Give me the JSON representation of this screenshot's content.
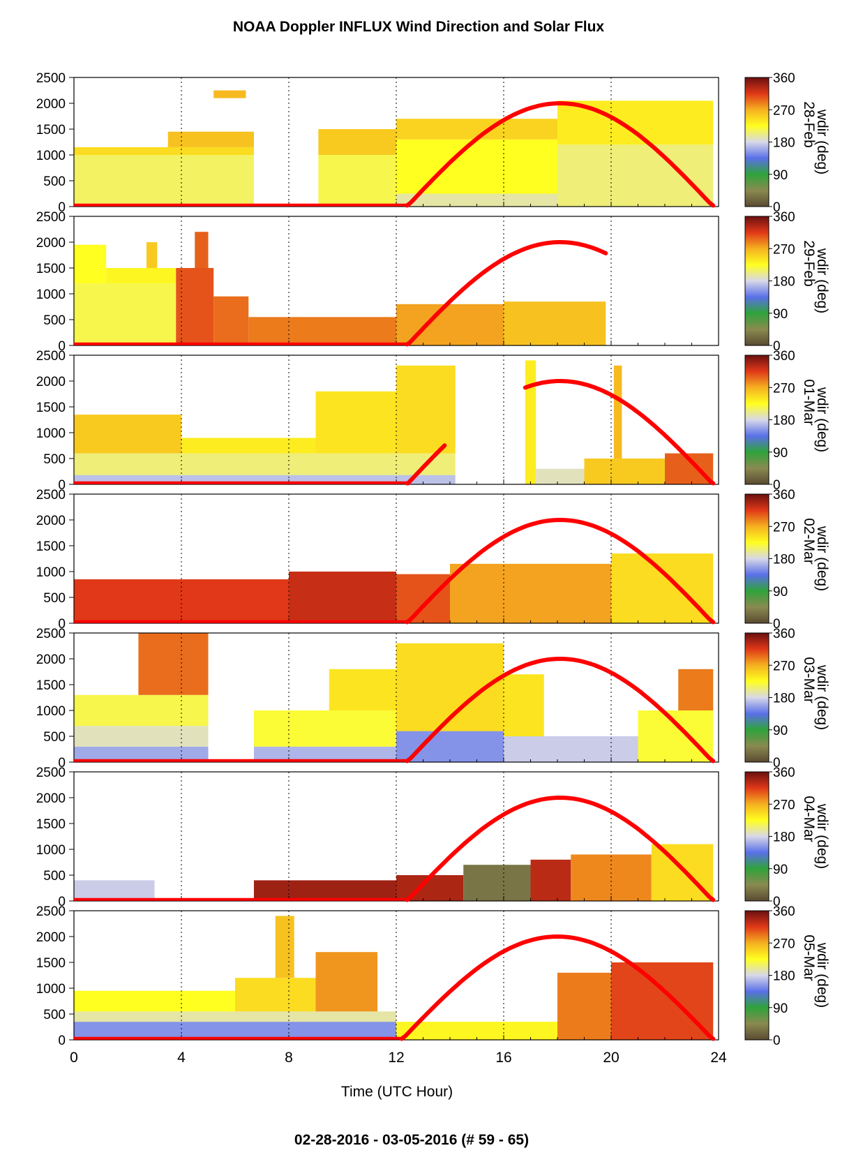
{
  "title": "NOAA Doppler INFLUX Wind Direction and Solar Flux",
  "footer": "02-28-2016 - 03-05-2016   (# 59 - 65)",
  "xlabel": "Time (UTC Hour)",
  "colorbar_label": "wdir (deg)",
  "colors": {
    "solar_curve": "#ff0000",
    "background": "#ffffff"
  },
  "chart_data": {
    "type": "heatmap",
    "title": "NOAA Doppler INFLUX Wind Direction and Solar Flux",
    "xlabel": "Time (UTC Hour)",
    "xlim": [
      0,
      24
    ],
    "xticks": [
      "0",
      "4",
      "8",
      "12",
      "16",
      "20",
      "24"
    ],
    "ylim": [
      0,
      2500
    ],
    "yticks": [
      "0",
      "500",
      "1000",
      "1500",
      "2000",
      "2500"
    ],
    "grid": "dotted vertical lines every 4 hours",
    "colorbar": {
      "label": "wdir (deg)",
      "range": [
        0,
        360
      ],
      "ticks": [
        "0",
        "90",
        "180",
        "270",
        "360"
      ]
    },
    "colorbar_stops": [
      [
        0,
        "#5a4a32"
      ],
      [
        45,
        "#8a8a50"
      ],
      [
        90,
        "#2fa33a"
      ],
      [
        135,
        "#5a70e8"
      ],
      [
        180,
        "#d8d8e8"
      ],
      [
        225,
        "#ffff20"
      ],
      [
        270,
        "#f5b020"
      ],
      [
        315,
        "#e03818"
      ],
      [
        360,
        "#6a1010"
      ]
    ],
    "series": [
      {
        "name": "solar flux",
        "color": "#ff0000"
      }
    ],
    "panels": [
      {
        "date": "28-Feb",
        "solar_peak_height": 2000,
        "solar_start": 12.4,
        "solar_end": 23.8,
        "solar_peak_time": 18.0,
        "solar_curve_end": 23.8,
        "blocks": [
          {
            "t0": 0.0,
            "t1": 6.7,
            "h0": 0,
            "h1": 1000,
            "wdir": 210
          },
          {
            "t0": 0.0,
            "t1": 6.7,
            "h0": 1000,
            "h1": 1150,
            "wdir": 245
          },
          {
            "t0": 3.5,
            "t1": 6.7,
            "h0": 1150,
            "h1": 1450,
            "wdir": 260
          },
          {
            "t0": 5.2,
            "t1": 6.4,
            "h0": 2100,
            "h1": 2250,
            "wdir": 265
          },
          {
            "t0": 9.1,
            "t1": 12.0,
            "h0": 0,
            "h1": 1000,
            "wdir": 215
          },
          {
            "t0": 9.1,
            "t1": 12.0,
            "h0": 1000,
            "h1": 1500,
            "wdir": 255
          },
          {
            "t0": 12.0,
            "t1": 18.0,
            "h0": 0,
            "h1": 250,
            "wdir": 195
          },
          {
            "t0": 12.0,
            "t1": 18.0,
            "h0": 250,
            "h1": 1300,
            "wdir": 225
          },
          {
            "t0": 12.0,
            "t1": 18.0,
            "h0": 1300,
            "h1": 1700,
            "wdir": 250
          },
          {
            "t0": 18.0,
            "t1": 23.8,
            "h0": 0,
            "h1": 1200,
            "wdir": 205
          },
          {
            "t0": 18.0,
            "t1": 23.8,
            "h0": 1200,
            "h1": 2050,
            "wdir": 235
          }
        ]
      },
      {
        "date": "29-Feb",
        "solar_peak_height": 2000,
        "solar_start": 12.4,
        "solar_end": 23.8,
        "solar_peak_time": 18.0,
        "solar_curve_end": 19.8,
        "blocks": [
          {
            "t0": 0.0,
            "t1": 3.8,
            "h0": 0,
            "h1": 1200,
            "wdir": 215
          },
          {
            "t0": 0.0,
            "t1": 1.2,
            "h0": 1200,
            "h1": 1950,
            "wdir": 225
          },
          {
            "t0": 1.2,
            "t1": 3.8,
            "h0": 1200,
            "h1": 1500,
            "wdir": 230
          },
          {
            "t0": 2.7,
            "t1": 3.1,
            "h0": 1500,
            "h1": 2000,
            "wdir": 255
          },
          {
            "t0": 3.8,
            "t1": 5.2,
            "h0": 0,
            "h1": 1500,
            "wdir": 305
          },
          {
            "t0": 4.5,
            "t1": 5.0,
            "h0": 1500,
            "h1": 2200,
            "wdir": 300
          },
          {
            "t0": 5.2,
            "t1": 6.5,
            "h0": 0,
            "h1": 950,
            "wdir": 295
          },
          {
            "t0": 6.5,
            "t1": 12.0,
            "h0": 0,
            "h1": 550,
            "wdir": 290
          },
          {
            "t0": 12.0,
            "t1": 16.0,
            "h0": 0,
            "h1": 800,
            "wdir": 275
          },
          {
            "t0": 16.0,
            "t1": 19.8,
            "h0": 0,
            "h1": 850,
            "wdir": 260
          }
        ]
      },
      {
        "date": "01-Mar",
        "solar_peak_height": 2000,
        "solar_start": 12.4,
        "solar_end": 23.8,
        "solar_peak_time": 18.0,
        "solar_segments": [
          [
            12.4,
            13.8
          ],
          [
            16.8,
            23.8
          ]
        ],
        "blocks": [
          {
            "t0": 0.0,
            "t1": 14.2,
            "h0": 0,
            "h1": 180,
            "wdir": 170
          },
          {
            "t0": 0.0,
            "t1": 14.2,
            "h0": 180,
            "h1": 600,
            "wdir": 205
          },
          {
            "t0": 0.0,
            "t1": 4.0,
            "h0": 600,
            "h1": 1350,
            "wdir": 255
          },
          {
            "t0": 4.0,
            "t1": 9.0,
            "h0": 600,
            "h1": 900,
            "wdir": 235
          },
          {
            "t0": 9.0,
            "t1": 12.0,
            "h0": 600,
            "h1": 1800,
            "wdir": 240
          },
          {
            "t0": 12.0,
            "t1": 14.2,
            "h0": 600,
            "h1": 2300,
            "wdir": 245
          },
          {
            "t0": 16.8,
            "t1": 17.2,
            "h0": 0,
            "h1": 2400,
            "wdir": 235
          },
          {
            "t0": 17.2,
            "t1": 19.0,
            "h0": 0,
            "h1": 300,
            "wdir": 190
          },
          {
            "t0": 19.0,
            "t1": 22.0,
            "h0": 0,
            "h1": 500,
            "wdir": 255
          },
          {
            "t0": 20.1,
            "t1": 20.4,
            "h0": 500,
            "h1": 2300,
            "wdir": 265
          },
          {
            "t0": 22.0,
            "t1": 23.8,
            "h0": 0,
            "h1": 600,
            "wdir": 300
          }
        ]
      },
      {
        "date": "02-Mar",
        "solar_peak_height": 2000,
        "solar_start": 12.4,
        "solar_end": 23.8,
        "solar_peak_time": 18.0,
        "solar_curve_end": 23.8,
        "blocks": [
          {
            "t0": 0.0,
            "t1": 8.0,
            "h0": 0,
            "h1": 850,
            "wdir": 315
          },
          {
            "t0": 8.0,
            "t1": 12.0,
            "h0": 0,
            "h1": 1000,
            "wdir": 325
          },
          {
            "t0": 12.0,
            "t1": 14.0,
            "h0": 0,
            "h1": 950,
            "wdir": 305
          },
          {
            "t0": 14.0,
            "t1": 20.0,
            "h0": 0,
            "h1": 1150,
            "wdir": 275
          },
          {
            "t0": 20.0,
            "t1": 23.8,
            "h0": 0,
            "h1": 1350,
            "wdir": 245
          }
        ]
      },
      {
        "date": "03-Mar",
        "solar_peak_height": 2000,
        "solar_start": 12.4,
        "solar_end": 23.8,
        "solar_peak_time": 18.0,
        "solar_curve_end": 23.8,
        "blocks": [
          {
            "t0": 0.0,
            "t1": 5.0,
            "h0": 0,
            "h1": 300,
            "wdir": 160
          },
          {
            "t0": 0.0,
            "t1": 5.0,
            "h0": 300,
            "h1": 700,
            "wdir": 190
          },
          {
            "t0": 0.0,
            "t1": 5.0,
            "h0": 700,
            "h1": 1300,
            "wdir": 215
          },
          {
            "t0": 2.4,
            "t1": 5.0,
            "h0": 1300,
            "h1": 2500,
            "wdir": 295
          },
          {
            "t0": 6.7,
            "t1": 12.0,
            "h0": 0,
            "h1": 300,
            "wdir": 165
          },
          {
            "t0": 6.7,
            "t1": 12.0,
            "h0": 300,
            "h1": 1000,
            "wdir": 220
          },
          {
            "t0": 9.5,
            "t1": 12.0,
            "h0": 1000,
            "h1": 1800,
            "wdir": 240
          },
          {
            "t0": 12.0,
            "t1": 16.0,
            "h0": 0,
            "h1": 600,
            "wdir": 150
          },
          {
            "t0": 12.0,
            "t1": 16.0,
            "h0": 600,
            "h1": 2300,
            "wdir": 245
          },
          {
            "t0": 16.0,
            "t1": 21.0,
            "h0": 0,
            "h1": 500,
            "wdir": 175
          },
          {
            "t0": 16.0,
            "t1": 17.5,
            "h0": 500,
            "h1": 1700,
            "wdir": 240
          },
          {
            "t0": 21.0,
            "t1": 23.8,
            "h0": 0,
            "h1": 1000,
            "wdir": 220
          },
          {
            "t0": 22.5,
            "t1": 23.8,
            "h0": 1000,
            "h1": 1800,
            "wdir": 290
          }
        ]
      },
      {
        "date": "04-Mar",
        "solar_peak_height": 2000,
        "solar_start": 12.4,
        "solar_end": 23.8,
        "solar_peak_time": 18.0,
        "solar_curve_end": 23.8,
        "blocks": [
          {
            "t0": 0.0,
            "t1": 3.0,
            "h0": 0,
            "h1": 400,
            "wdir": 175
          },
          {
            "t0": 6.7,
            "t1": 12.0,
            "h0": 0,
            "h1": 400,
            "wdir": 340
          },
          {
            "t0": 12.0,
            "t1": 14.5,
            "h0": 0,
            "h1": 500,
            "wdir": 335
          },
          {
            "t0": 14.5,
            "t1": 17.0,
            "h0": 0,
            "h1": 700,
            "wdir": 30
          },
          {
            "t0": 17.0,
            "t1": 18.5,
            "h0": 0,
            "h1": 800,
            "wdir": 330
          },
          {
            "t0": 18.5,
            "t1": 21.5,
            "h0": 0,
            "h1": 900,
            "wdir": 285
          },
          {
            "t0": 21.5,
            "t1": 23.8,
            "h0": 0,
            "h1": 1100,
            "wdir": 245
          }
        ]
      },
      {
        "date": "05-Mar",
        "solar_peak_height": 2000,
        "solar_start": 12.2,
        "solar_end": 23.8,
        "solar_peak_time": 18.0,
        "solar_curve_end": 23.8,
        "blocks": [
          {
            "t0": 0.0,
            "t1": 12.0,
            "h0": 0,
            "h1": 350,
            "wdir": 150
          },
          {
            "t0": 0.0,
            "t1": 12.0,
            "h0": 350,
            "h1": 550,
            "wdir": 195
          },
          {
            "t0": 0.0,
            "t1": 6.0,
            "h0": 550,
            "h1": 950,
            "wdir": 225
          },
          {
            "t0": 6.0,
            "t1": 9.0,
            "h0": 550,
            "h1": 1200,
            "wdir": 245
          },
          {
            "t0": 7.5,
            "t1": 8.2,
            "h0": 1200,
            "h1": 2400,
            "wdir": 260
          },
          {
            "t0": 9.0,
            "t1": 11.3,
            "h0": 550,
            "h1": 1700,
            "wdir": 280
          },
          {
            "t0": 12.0,
            "t1": 18.0,
            "h0": 0,
            "h1": 350,
            "wdir": 230
          },
          {
            "t0": 18.0,
            "t1": 20.0,
            "h0": 0,
            "h1": 1300,
            "wdir": 290
          },
          {
            "t0": 20.0,
            "t1": 23.8,
            "h0": 0,
            "h1": 1500,
            "wdir": 310
          }
        ]
      }
    ]
  }
}
